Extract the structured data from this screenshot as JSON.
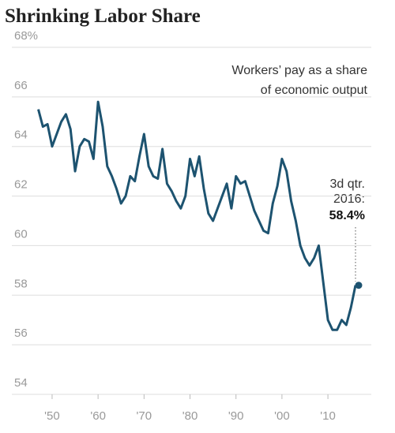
{
  "chart_data": {
    "type": "line",
    "title": "Shrinking Labor Share",
    "annotations": [
      "Workers’ pay as a share",
      "of economic output",
      "3d qtr.",
      "2016:"
    ],
    "end_label": "58.4%",
    "x": [
      1947,
      1948,
      1949,
      1950,
      1951,
      1952,
      1953,
      1954,
      1955,
      1956,
      1957,
      1958,
      1959,
      1960,
      1961,
      1962,
      1963,
      1964,
      1965,
      1966,
      1967,
      1968,
      1969,
      1970,
      1971,
      1972,
      1973,
      1974,
      1975,
      1976,
      1977,
      1978,
      1979,
      1980,
      1981,
      1982,
      1983,
      1984,
      1985,
      1986,
      1987,
      1988,
      1989,
      1990,
      1991,
      1992,
      1993,
      1994,
      1995,
      1996,
      1997,
      1998,
      1999,
      2000,
      2001,
      2002,
      2003,
      2004,
      2005,
      2006,
      2007,
      2008,
      2009,
      2010,
      2011,
      2012,
      2013,
      2014,
      2015,
      2016
    ],
    "series": [
      {
        "color": "#1d5370",
        "values": [
          65.5,
          64.8,
          64.9,
          64.0,
          64.5,
          65.0,
          65.3,
          64.7,
          63.0,
          64.0,
          64.3,
          64.2,
          63.5,
          65.8,
          64.8,
          63.2,
          62.8,
          62.3,
          61.7,
          62.0,
          62.8,
          62.6,
          63.6,
          64.5,
          63.2,
          62.8,
          62.7,
          63.9,
          62.5,
          62.2,
          61.8,
          61.5,
          62.0,
          63.5,
          62.8,
          63.6,
          62.3,
          61.3,
          61.0,
          61.5,
          62.0,
          62.5,
          61.5,
          62.8,
          62.5,
          62.6,
          62.0,
          61.4,
          61.0,
          60.6,
          60.5,
          61.7,
          62.4,
          63.5,
          63.0,
          61.8,
          61.0,
          60.0,
          59.5,
          59.2,
          59.5,
          60.0,
          58.5,
          57.0,
          56.6,
          56.6,
          57.0,
          56.8,
          57.5,
          58.4
        ]
      }
    ],
    "xlim": [
      1947,
      2016
    ],
    "xticks": [
      {
        "value": 1950,
        "label": "'50"
      },
      {
        "value": 1960,
        "label": "'60"
      },
      {
        "value": 1970,
        "label": "'70"
      },
      {
        "value": 1980,
        "label": "'80"
      },
      {
        "value": 1990,
        "label": "'90"
      },
      {
        "value": 2000,
        "label": "'00"
      },
      {
        "value": 2010,
        "label": "'10"
      }
    ],
    "ylim": [
      54,
      68
    ],
    "yticks": [
      54,
      56,
      58,
      60,
      62,
      64,
      66,
      {
        "value": 68,
        "label": "68%"
      }
    ],
    "grid": true
  }
}
